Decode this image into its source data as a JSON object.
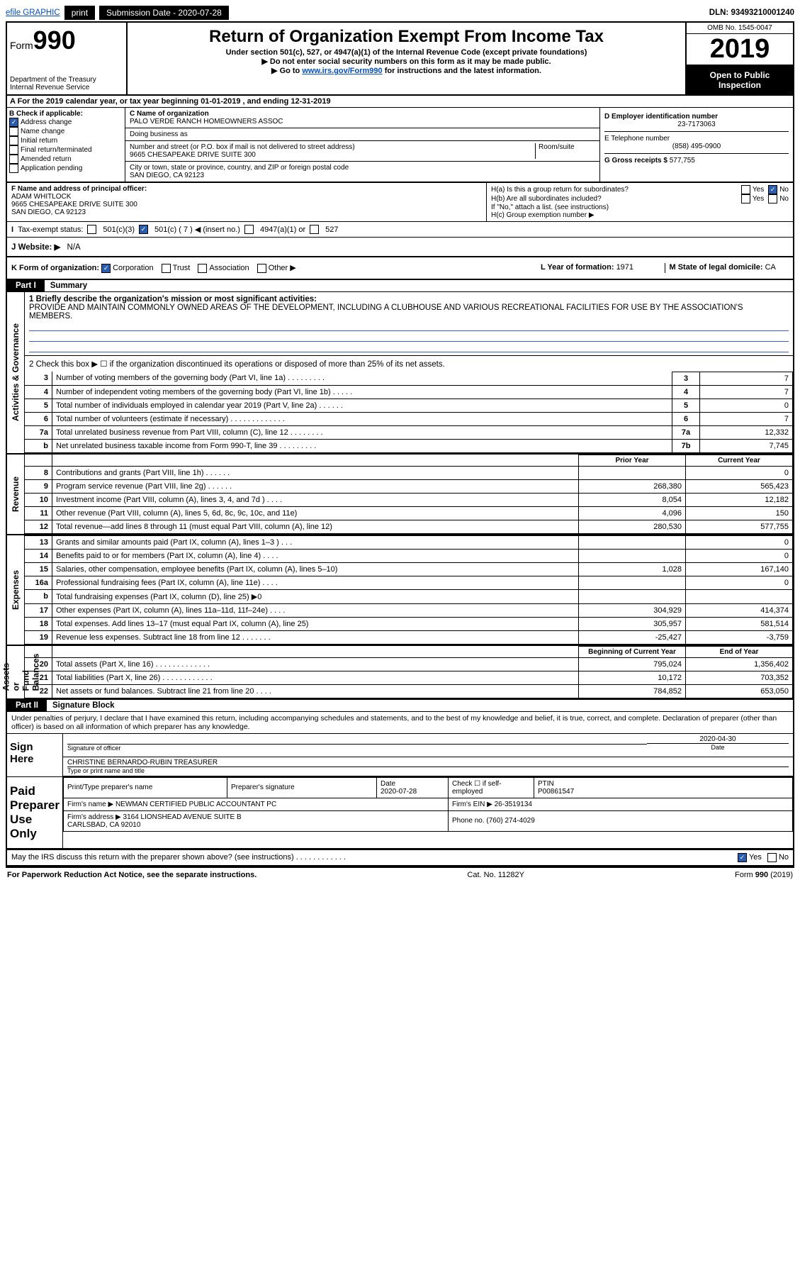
{
  "top": {
    "efile": "efile GRAPHIC",
    "print": "print",
    "subm_label": "Submission Date - ",
    "subm_date": "2020-07-28",
    "dln": "DLN: 93493210001240"
  },
  "header": {
    "form": "990",
    "form_prefix": "Form",
    "title": "Return of Organization Exempt From Income Tax",
    "sub1": "Under section 501(c), 527, or 4947(a)(1) of the Internal Revenue Code (except private foundations)",
    "sub2": "▶ Do not enter social security numbers on this form as it may be made public.",
    "sub3_pre": "▶ Go to ",
    "sub3_link": "www.irs.gov/Form990",
    "sub3_post": " for instructions and the latest information.",
    "dept": "Department of the Treasury\nInternal Revenue Service",
    "omb": "OMB No. 1545-0047",
    "year": "2019",
    "open": "Open to Public Inspection"
  },
  "row_a": "A For the 2019 calendar year, or tax year beginning 01-01-2019   , and ending 12-31-2019",
  "col_b": {
    "label": "B Check if applicable:",
    "addr": "Address change",
    "name": "Name change",
    "init": "Initial return",
    "final": "Final return/terminated",
    "amend": "Amended return",
    "app": "Application pending"
  },
  "col_c": {
    "c_label": "C Name of organization",
    "org": "PALO VERDE RANCH HOMEOWNERS ASSOC",
    "dba_label": "Doing business as",
    "addr_label": "Number and street (or P.O. box if mail is not delivered to street address)",
    "room_label": "Room/suite",
    "addr": "9665 CHESAPEAKE DRIVE SUITE 300",
    "city_label": "City or town, state or province, country, and ZIP or foreign postal code",
    "city": "SAN DIEGO, CA  92123"
  },
  "col_d": {
    "d_label": "D Employer identification number",
    "ein": "23-7173063",
    "e_label": "E Telephone number",
    "phone": "(858) 495-0900",
    "g_label": "G Gross receipts $ ",
    "gross": "577,755"
  },
  "row_f": {
    "f_label": "F  Name and address of principal officer:",
    "name": "ADAM WHITLOCK",
    "addr1": "9665 CHESAPEAKE DRIVE SUITE 300",
    "addr2": "SAN DIEGO, CA  92123",
    "ha": "H(a)  Is this a group return for subordinates?",
    "hb": "H(b)  Are all subordinates included?",
    "hb_note": "If \"No,\" attach a list. (see instructions)",
    "hc": "H(c)  Group exemption number ▶",
    "yes": "Yes",
    "no": "No"
  },
  "tax_status": {
    "label": "Tax-exempt status:",
    "c3": "501(c)(3)",
    "c": "501(c) ( 7 ) ◀ (insert no.)",
    "a1": "4947(a)(1) or",
    "s527": "527"
  },
  "website": {
    "label": "J  Website: ▶",
    "val": "N/A"
  },
  "row_k": {
    "label": "K Form of organization:",
    "corp": "Corporation",
    "trust": "Trust",
    "assoc": "Association",
    "other": "Other ▶",
    "l": "L Year of formation: ",
    "l_val": "1971",
    "m": "M State of legal domicile: ",
    "m_val": "CA"
  },
  "part1": {
    "label": "Part I",
    "title": "Summary",
    "line1_label": "1  Briefly describe the organization's mission or most significant activities:",
    "mission": "PROVIDE AND MAINTAIN COMMONLY OWNED AREAS OF THE DEVELOPMENT, INCLUDING A CLUBHOUSE AND VARIOUS RECREATIONAL FACILITIES FOR USE BY THE ASSOCIATION'S MEMBERS.",
    "line2": "2   Check this box ▶ ☐  if the organization discontinued its operations or disposed of more than 25% of its net assets.",
    "vert_ag": "Activities & Governance",
    "vert_rev": "Revenue",
    "vert_exp": "Expenses",
    "vert_na": "Net Assets or\nFund Balances",
    "rows_ag": [
      {
        "n": "3",
        "t": "Number of voting members of the governing body (Part VI, line 1a)  .   .   .   .   .   .   .   .   .",
        "box": "3",
        "v": "7"
      },
      {
        "n": "4",
        "t": "Number of independent voting members of the governing body (Part VI, line 1b)  .   .   .   .   .",
        "box": "4",
        "v": "7"
      },
      {
        "n": "5",
        "t": "Total number of individuals employed in calendar year 2019 (Part V, line 2a)  .   .   .   .   .   .",
        "box": "5",
        "v": "0"
      },
      {
        "n": "6",
        "t": "Total number of volunteers (estimate if necessary)   .   .   .   .   .   .   .   .   .   .   .   .   .",
        "box": "6",
        "v": "7"
      },
      {
        "n": "7a",
        "t": "Total unrelated business revenue from Part VIII, column (C), line 12  .   .   .   .   .   .   .   .",
        "box": "7a",
        "v": "12,332"
      },
      {
        "n": "b",
        "t": "Net unrelated business taxable income from Form 990-T, line 39   .   .   .   .   .   .   .   .   .",
        "box": "7b",
        "v": "7,745"
      }
    ],
    "prior": "Prior Year",
    "current": "Current Year",
    "rows_rev": [
      {
        "n": "8",
        "t": "Contributions and grants (Part VIII, line 1h)   .   .   .   .   .   .",
        "p": "",
        "c": "0"
      },
      {
        "n": "9",
        "t": "Program service revenue (Part VIII, line 2g)   .   .   .   .   .   .",
        "p": "268,380",
        "c": "565,423"
      },
      {
        "n": "10",
        "t": "Investment income (Part VIII, column (A), lines 3, 4, and 7d )   .   .   .   .",
        "p": "8,054",
        "c": "12,182"
      },
      {
        "n": "11",
        "t": "Other revenue (Part VIII, column (A), lines 5, 6d, 8c, 9c, 10c, and 11e)",
        "p": "4,096",
        "c": "150"
      },
      {
        "n": "12",
        "t": "Total revenue—add lines 8 through 11 (must equal Part VIII, column (A), line 12)",
        "p": "280,530",
        "c": "577,755"
      }
    ],
    "rows_exp": [
      {
        "n": "13",
        "t": "Grants and similar amounts paid (Part IX, column (A), lines 1–3 )  .   .   .",
        "p": "",
        "c": "0"
      },
      {
        "n": "14",
        "t": "Benefits paid to or for members (Part IX, column (A), line 4)   .   .   .   .",
        "p": "",
        "c": "0"
      },
      {
        "n": "15",
        "t": "Salaries, other compensation, employee benefits (Part IX, column (A), lines 5–10)",
        "p": "1,028",
        "c": "167,140"
      },
      {
        "n": "16a",
        "t": "Professional fundraising fees (Part IX, column (A), line 11e)   .   .   .   .",
        "p": "",
        "c": "0"
      },
      {
        "n": "b",
        "t": "Total fundraising expenses (Part IX, column (D), line 25) ▶0",
        "p": "shade",
        "c": "shade"
      },
      {
        "n": "17",
        "t": "Other expenses (Part IX, column (A), lines 11a–11d, 11f–24e)   .   .   .   .",
        "p": "304,929",
        "c": "414,374"
      },
      {
        "n": "18",
        "t": "Total expenses. Add lines 13–17 (must equal Part IX, column (A), line 25)",
        "p": "305,957",
        "c": "581,514"
      },
      {
        "n": "19",
        "t": "Revenue less expenses. Subtract line 18 from line 12  .   .   .   .   .   .   .",
        "p": "-25,427",
        "c": "-3,759"
      }
    ],
    "boy": "Beginning of Current Year",
    "eoy": "End of Year",
    "rows_na": [
      {
        "n": "20",
        "t": "Total assets (Part X, line 16)  .   .   .   .   .   .   .   .   .   .   .   .   .",
        "p": "795,024",
        "c": "1,356,402"
      },
      {
        "n": "21",
        "t": "Total liabilities (Part X, line 26)  .   .   .   .   .   .   .   .   .   .   .   .",
        "p": "10,172",
        "c": "703,352"
      },
      {
        "n": "22",
        "t": "Net assets or fund balances. Subtract line 21 from line 20   .   .   .   .",
        "p": "784,852",
        "c": "653,050"
      }
    ]
  },
  "part2": {
    "label": "Part II",
    "title": "Signature Block",
    "penalties": "Under penalties of perjury, I declare that I have examined this return, including accompanying schedules and statements, and to the best of my knowledge and belief, it is true, correct, and complete. Declaration of preparer (other than officer) is based on all information of which preparer has any knowledge.",
    "sign_here": "Sign Here",
    "sig_off": "Signature of officer",
    "sig_date_label": "Date",
    "sig_date": "2020-04-30",
    "officer": "CHRISTINE BERNARDO-RUBIN  TREASURER",
    "type_label": "Type or print name and title",
    "paid": "Paid Preparer Use Only",
    "prep_name_label": "Print/Type preparer's name",
    "prep_sig_label": "Preparer's signature",
    "prep_date_label": "Date",
    "prep_date": "2020-07-28",
    "check_self": "Check ☐ if self-employed",
    "ptin_label": "PTIN",
    "ptin": "P00861547",
    "firm_name_label": "Firm's name     ▶",
    "firm_name": "NEWMAN CERTIFIED PUBLIC ACCOUNTANT PC",
    "firm_ein_label": "Firm's EIN ▶",
    "firm_ein": "26-3519134",
    "firm_addr_label": "Firm's address ▶",
    "firm_addr": "3164 LIONSHEAD AVENUE SUITE B\nCARLSBAD, CA  92010",
    "phone_label": "Phone no. ",
    "phone": "(760) 274-4029",
    "discuss": "May the IRS discuss this return with the preparer shown above? (see instructions)   .   .   .   .   .   .   .   .   .   .   .   .",
    "discuss_yes": "Yes",
    "discuss_no": "No"
  },
  "footer": {
    "left": "For Paperwork Reduction Act Notice, see the separate instructions.",
    "mid": "Cat. No. 11282Y",
    "right": "Form 990 (2019)"
  }
}
